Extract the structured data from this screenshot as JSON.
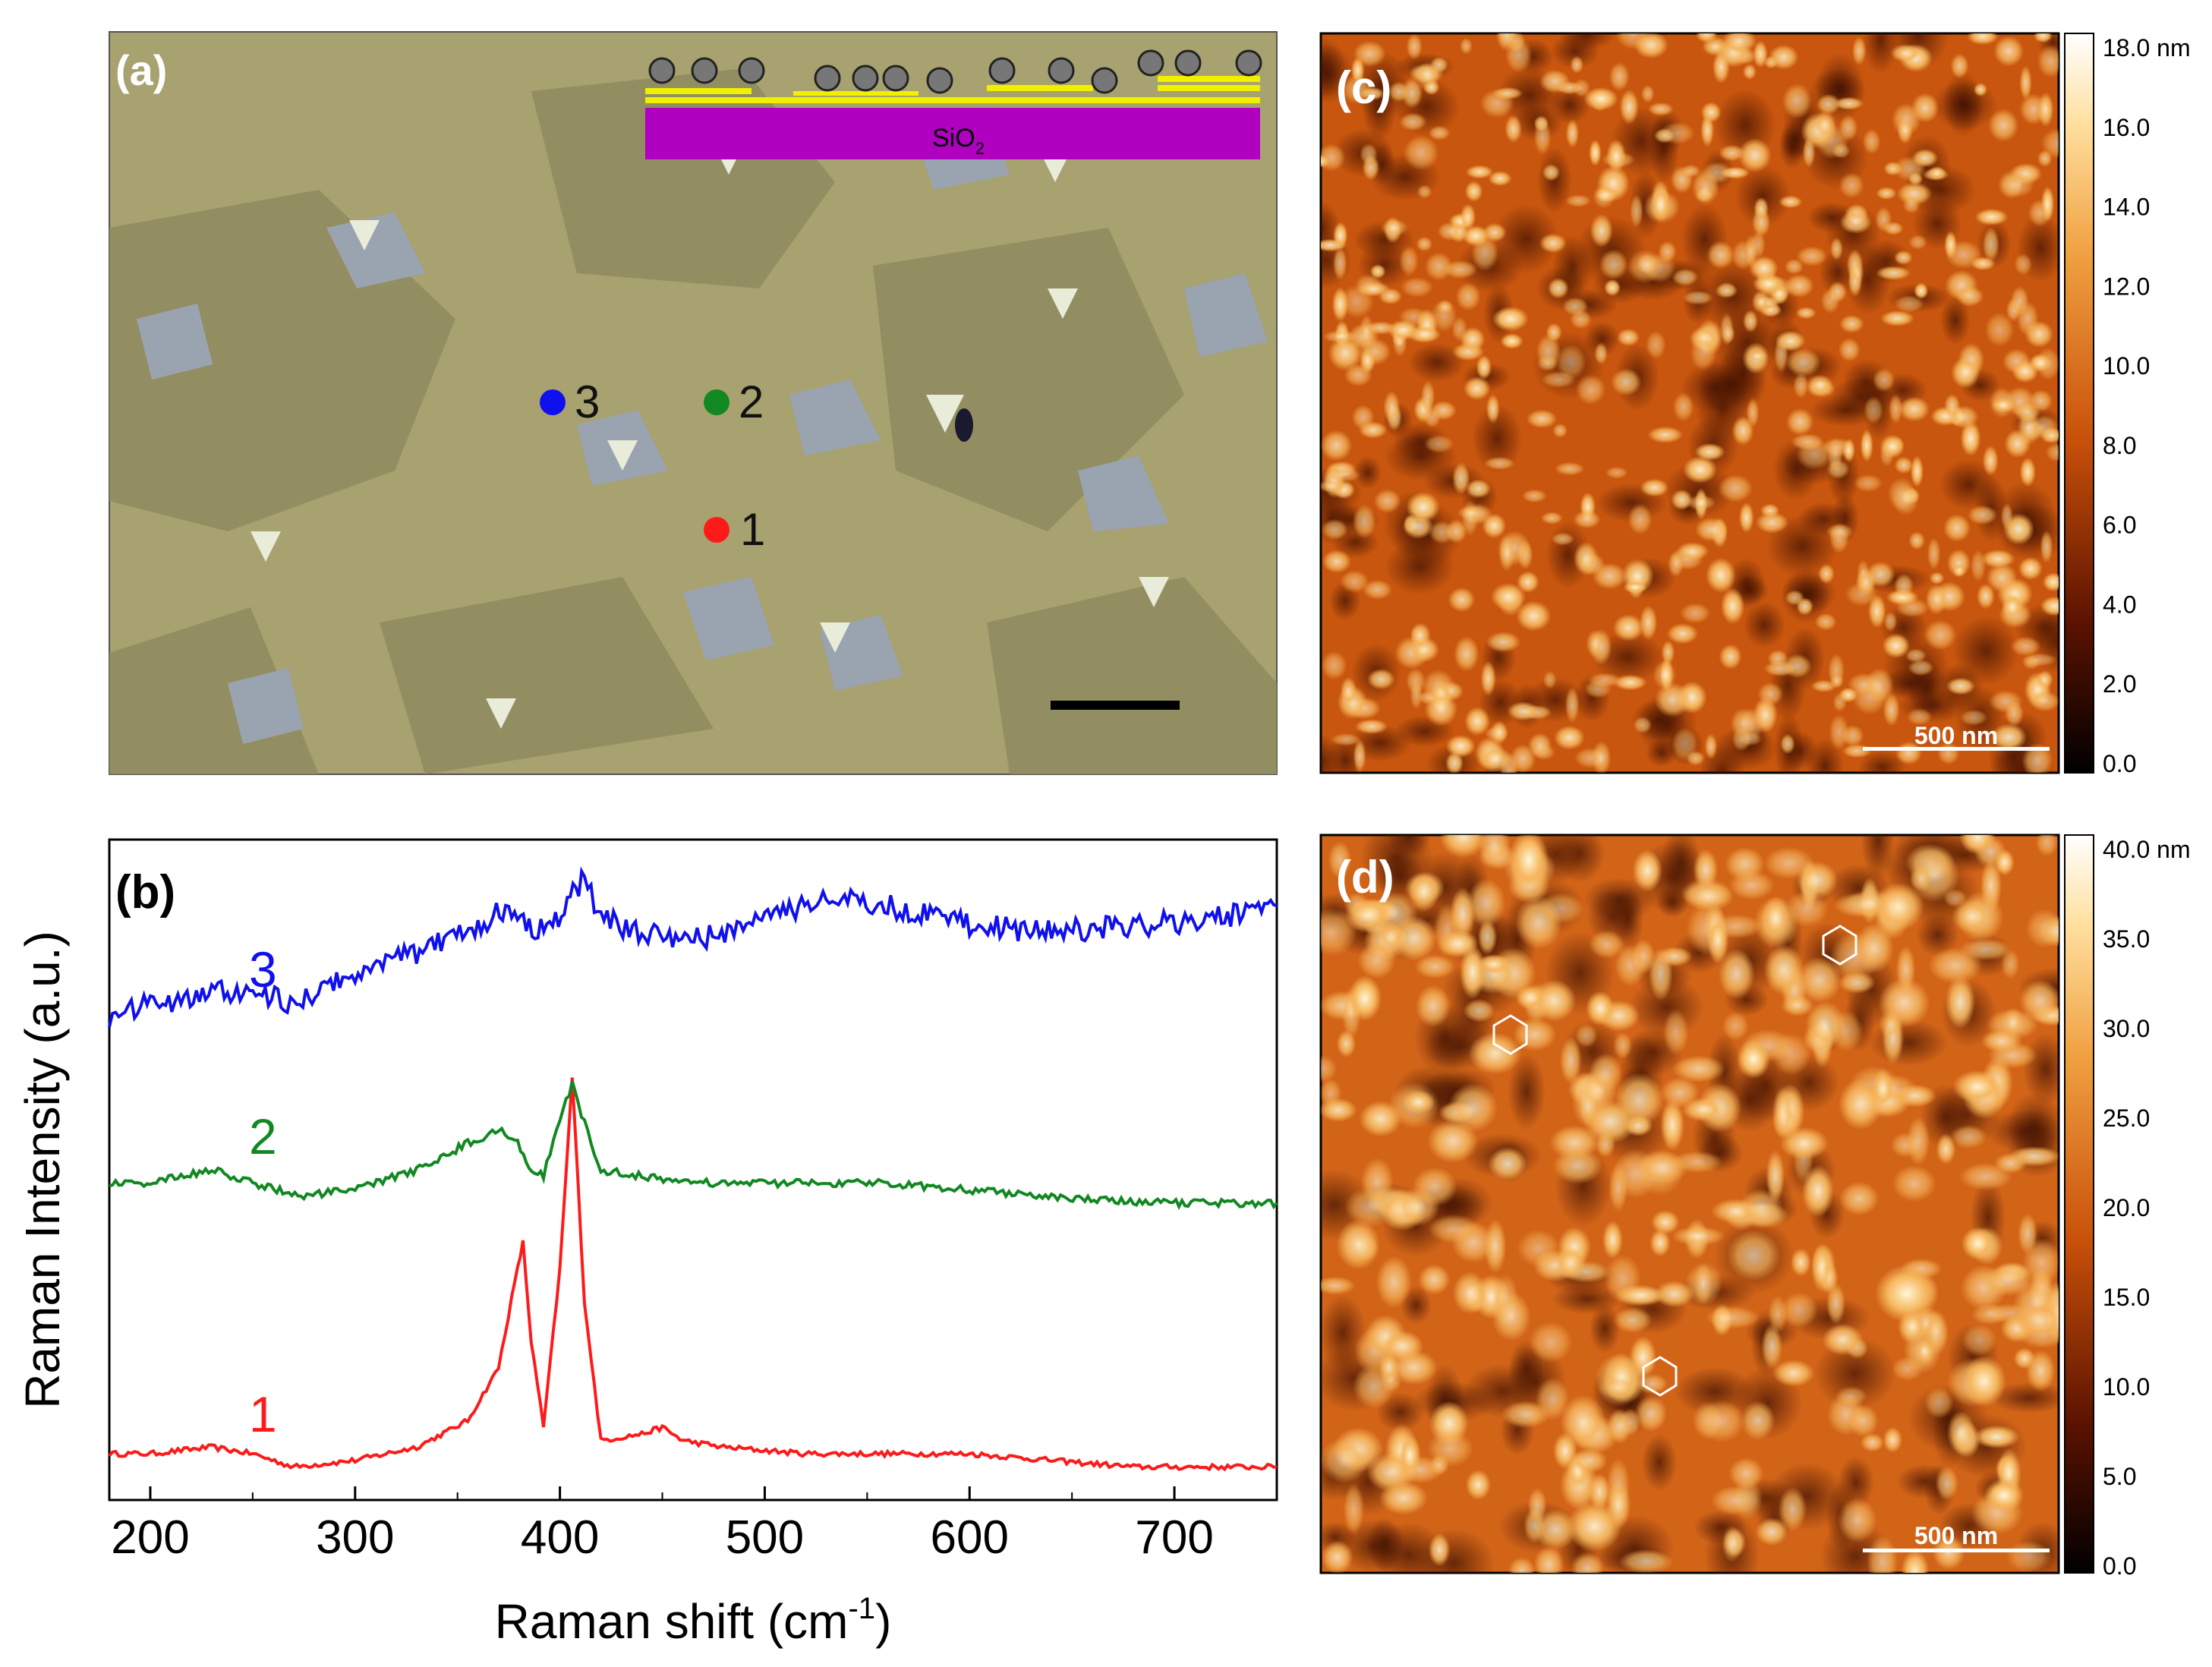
{
  "figure": {
    "panel_a": {
      "label": "(a)",
      "substrate_label": "SiO",
      "substrate_subscript": "2",
      "points": [
        {
          "label": "1",
          "color": "#ff1a1a"
        },
        {
          "label": "2",
          "color": "#118822"
        },
        {
          "label": "3",
          "color": "#1010ee"
        }
      ]
    },
    "panel_b": {
      "label": "(b)",
      "chart_data": {
        "type": "line",
        "title": "",
        "xlabel": "Raman shift (cm-1)",
        "xlabel_main": "Raman shift (cm",
        "xlabel_sup": "-1",
        "xlabel_close": ")",
        "ylabel": "Raman Intensity (a.u.)",
        "xlim": [
          180,
          750
        ],
        "xticks": [
          200,
          300,
          400,
          500,
          600,
          700
        ],
        "ylim": [
          0,
          1
        ],
        "grid": false,
        "series": [
          {
            "name": "1",
            "color": "#ff1a1a",
            "x": [
              180,
              200,
              230,
              250,
              270,
              300,
              330,
              355,
              370,
              378,
              382,
              386,
              392,
              400,
              406,
              412,
              420,
              440,
              450,
              460,
              480,
              520,
              560,
              600,
              640,
              680,
              720,
              750
            ],
            "y": [
              0.07,
              0.07,
              0.08,
              0.07,
              0.05,
              0.06,
              0.08,
              0.12,
              0.2,
              0.33,
              0.39,
              0.24,
              0.11,
              0.35,
              0.64,
              0.3,
              0.09,
              0.1,
              0.11,
              0.09,
              0.08,
              0.07,
              0.07,
              0.07,
              0.06,
              0.05,
              0.05,
              0.05
            ]
          },
          {
            "name": "2",
            "color": "#118822",
            "x": [
              180,
              200,
              230,
              250,
              275,
              300,
              330,
              355,
              370,
              378,
              385,
              392,
              400,
              406,
              412,
              420,
              440,
              470,
              520,
              560,
              600,
              640,
              680,
              720,
              750
            ],
            "y": [
              0.48,
              0.48,
              0.5,
              0.48,
              0.46,
              0.47,
              0.5,
              0.54,
              0.56,
              0.55,
              0.5,
              0.49,
              0.58,
              0.63,
              0.57,
              0.5,
              0.49,
              0.48,
              0.48,
              0.48,
              0.47,
              0.46,
              0.45,
              0.45,
              0.45
            ]
          },
          {
            "name": "3",
            "color": "#1010ee",
            "x": [
              180,
              200,
              230,
              250,
              270,
              300,
              330,
              360,
              375,
              385,
              395,
              405,
              412,
              420,
              440,
              470,
              500,
              530,
              560,
              600,
              640,
              680,
              720,
              750
            ],
            "y": [
              0.73,
              0.75,
              0.77,
              0.77,
              0.75,
              0.8,
              0.83,
              0.87,
              0.9,
              0.87,
              0.86,
              0.91,
              0.94,
              0.88,
              0.86,
              0.85,
              0.88,
              0.91,
              0.9,
              0.87,
              0.86,
              0.87,
              0.88,
              0.9
            ]
          }
        ]
      }
    },
    "panel_c": {
      "label": "(c)",
      "scalebar": "500 nm",
      "colorbar_ticks": [
        "18.0 nm",
        "16.0",
        "14.0",
        "12.0",
        "10.0",
        "8.0",
        "6.0",
        "4.0",
        "2.0",
        "0.0"
      ]
    },
    "panel_d": {
      "label": "(d)",
      "scalebar": "500 nm",
      "colorbar_ticks": [
        "40.0 nm",
        "35.0",
        "30.0",
        "25.0",
        "20.0",
        "15.0",
        "10.0",
        "5.0",
        "0.0"
      ]
    },
    "colors": {
      "optical_bg": "#a8a270",
      "optical_dark": "#8e8a5c",
      "multilayer": "#9aa3b0",
      "afm_mid": "#d86a1c",
      "afm_dark": "#3a0d00",
      "afm_light": "#fff0c8"
    }
  }
}
